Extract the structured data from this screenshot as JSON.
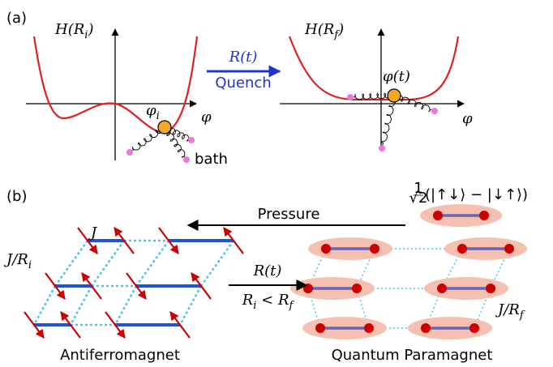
{
  "panel_a": {
    "label": "(a)",
    "left_plot": {
      "y_label": [
        "H(R",
        "i",
        ")"
      ],
      "x_label": "φ",
      "particle_label": [
        "φ",
        "i"
      ],
      "bath_label": "bath"
    },
    "arrow": {
      "top": "R(t)",
      "bottom": "Quench"
    },
    "right_plot": {
      "y_label": [
        "H(R",
        "f",
        ")"
      ],
      "x_label": "φ",
      "particle_label": "φ(t)"
    }
  },
  "panel_b": {
    "label": "(b)",
    "pressure": "Pressure",
    "singlet": {
      "numerator": "1",
      "denominator": "√2",
      "state": "(|↑↓⟩ − |↓↑⟩)"
    },
    "antiferromagnet": {
      "coupling": "J",
      "interdimer_coupling": [
        "J/R",
        "i"
      ],
      "name": "Antiferromagnet"
    },
    "arrow": {
      "top": "R(t)",
      "bottom": [
        "R",
        "i",
        " < R",
        "f"
      ]
    },
    "paramagnet": {
      "interdimer_coupling": [
        "J/R",
        "f"
      ],
      "name": "Quantum Paramagnet"
    }
  }
}
